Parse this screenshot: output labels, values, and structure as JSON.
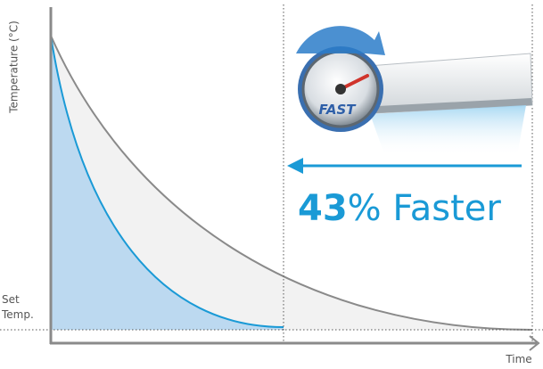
{
  "axes": {
    "y_label": "Temperature (°C)",
    "x_label": "Time"
  },
  "set_temp": [
    "Set",
    "Temp."
  ],
  "callout": {
    "number": "43",
    "text": "% Faster"
  },
  "badge": "FAST"
}
